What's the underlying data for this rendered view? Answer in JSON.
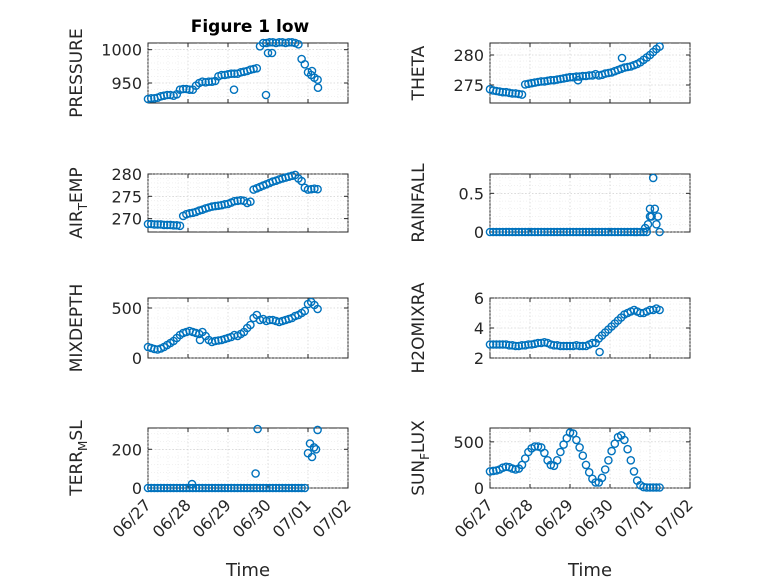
{
  "figure_title": "Figure 1 low",
  "chart_data": [
    {
      "type": "scatter",
      "ylabel": "PRESSURE",
      "ylim": [
        920,
        1010
      ],
      "yticks": [
        950,
        1000
      ],
      "yticklabels": [
        "950",
        "1000"
      ],
      "xlim": [
        0,
        5
      ],
      "xticklabels": [
        "06/27",
        "06/28",
        "06/29",
        "06/30",
        "07/01",
        "07/02"
      ],
      "xlabel": "",
      "color": "#0072bd",
      "grid": true,
      "x": [
        0.0,
        0.08,
        0.16,
        0.24,
        0.32,
        0.4,
        0.48,
        0.56,
        0.64,
        0.72,
        0.8,
        0.88,
        0.96,
        1.04,
        1.12,
        1.2,
        1.28,
        1.36,
        1.44,
        1.52,
        1.6,
        1.68,
        1.76,
        1.84,
        1.92,
        2.0,
        2.08,
        2.16,
        2.24,
        2.32,
        2.4,
        2.48,
        2.56,
        2.64,
        2.72,
        2.8,
        2.88,
        2.96,
        3.04,
        3.12,
        3.2,
        3.28,
        3.36,
        3.44,
        3.52,
        3.6,
        3.68,
        3.76,
        3.84,
        3.92,
        4.0,
        4.08,
        4.16,
        4.24,
        2.15,
        2.95,
        3.0,
        3.1,
        4.1,
        4.25
      ],
      "y": [
        926,
        927,
        927,
        928,
        930,
        931,
        932,
        932,
        931,
        933,
        940,
        941,
        941,
        940,
        940,
        946,
        950,
        952,
        951,
        952,
        952,
        953,
        960,
        962,
        962,
        963,
        964,
        964,
        964,
        966,
        967,
        968,
        970,
        971,
        972,
        1005,
        1010,
        1010,
        1011,
        1011,
        1010,
        1011,
        1011,
        1010,
        1011,
        1011,
        1010,
        1008,
        986,
        978,
        966,
        962,
        958,
        955,
        940,
        932,
        995,
        995,
        968,
        943
      ]
    },
    {
      "type": "scatter",
      "ylabel": "THETA",
      "ylim": [
        272,
        282
      ],
      "yticks": [
        275,
        280
      ],
      "yticklabels": [
        "275",
        "280"
      ],
      "xlim": [
        0,
        5
      ],
      "xticklabels": [
        "06/27",
        "06/28",
        "06/29",
        "06/30",
        "07/01",
        "07/02"
      ],
      "xlabel": "",
      "color": "#0072bd",
      "grid": true,
      "x": [
        0.0,
        0.08,
        0.16,
        0.24,
        0.32,
        0.4,
        0.48,
        0.56,
        0.64,
        0.72,
        0.8,
        0.88,
        0.96,
        1.04,
        1.12,
        1.2,
        1.28,
        1.36,
        1.44,
        1.52,
        1.6,
        1.68,
        1.76,
        1.84,
        1.92,
        2.0,
        2.08,
        2.16,
        2.24,
        2.32,
        2.4,
        2.48,
        2.56,
        2.64,
        2.72,
        2.8,
        2.88,
        2.96,
        3.04,
        3.12,
        3.2,
        3.28,
        3.36,
        3.44,
        3.52,
        3.6,
        3.68,
        3.76,
        3.84,
        3.92,
        4.0,
        4.08,
        4.16,
        4.24,
        3.3,
        2.2
      ],
      "y": [
        274.3,
        274.1,
        274.0,
        273.9,
        273.8,
        273.8,
        273.7,
        273.6,
        273.6,
        273.5,
        273.4,
        275.1,
        275.2,
        275.3,
        275.4,
        275.5,
        275.6,
        275.6,
        275.7,
        275.8,
        275.8,
        275.9,
        276.0,
        276.1,
        276.2,
        276.3,
        276.3,
        276.4,
        276.4,
        276.5,
        276.5,
        276.6,
        276.6,
        276.8,
        276.6,
        276.7,
        276.9,
        277.0,
        277.1,
        277.3,
        277.5,
        277.7,
        277.9,
        278.0,
        278.1,
        278.3,
        278.5,
        278.8,
        279.2,
        279.6,
        280.0,
        280.5,
        281.0,
        281.4,
        279.5,
        275.8
      ]
    },
    {
      "type": "scatter",
      "ylabel": "AIR_TEMP",
      "ylim": [
        267,
        280
      ],
      "yticks": [
        270,
        275,
        280
      ],
      "yticklabels": [
        "270",
        "275",
        "280"
      ],
      "xlim": [
        0,
        5
      ],
      "xticklabels": [
        "06/27",
        "06/28",
        "06/29",
        "06/30",
        "07/01",
        "07/02"
      ],
      "xlabel": "",
      "color": "#0072bd",
      "grid": true,
      "x": [
        0.0,
        0.08,
        0.16,
        0.24,
        0.32,
        0.4,
        0.48,
        0.56,
        0.64,
        0.72,
        0.8,
        0.88,
        0.96,
        1.04,
        1.12,
        1.2,
        1.28,
        1.36,
        1.44,
        1.52,
        1.6,
        1.68,
        1.76,
        1.84,
        1.92,
        2.0,
        2.08,
        2.16,
        2.24,
        2.32,
        2.4,
        2.48,
        2.56,
        2.64,
        2.72,
        2.8,
        2.88,
        2.96,
        3.04,
        3.12,
        3.2,
        3.28,
        3.36,
        3.44,
        3.52,
        3.6,
        3.68,
        3.76,
        3.84,
        3.92,
        4.0,
        4.08,
        4.16,
        4.24
      ],
      "y": [
        268.8,
        268.8,
        268.7,
        268.7,
        268.7,
        268.6,
        268.6,
        268.6,
        268.5,
        268.5,
        268.4,
        270.6,
        271.0,
        271.2,
        271.3,
        271.5,
        271.8,
        272.0,
        272.3,
        272.5,
        272.7,
        272.8,
        272.9,
        273.0,
        273.2,
        273.3,
        273.6,
        273.9,
        274.0,
        274.1,
        274.0,
        273.5,
        273.8,
        276.5,
        276.8,
        277.1,
        277.4,
        277.7,
        278.0,
        278.3,
        278.5,
        278.8,
        279.0,
        279.2,
        279.4,
        279.6,
        279.8,
        279.0,
        278.4,
        276.9,
        276.5,
        276.6,
        276.7,
        276.6
      ]
    },
    {
      "type": "scatter",
      "ylabel": "RAINFALL",
      "ylim": [
        0,
        0.75
      ],
      "yticks": [
        0,
        0.5
      ],
      "yticklabels": [
        "0",
        "0.5"
      ],
      "xlim": [
        0,
        5
      ],
      "xticklabels": [
        "06/27",
        "06/28",
        "06/29",
        "06/30",
        "07/01",
        "07/02"
      ],
      "xlabel": "",
      "color": "#0072bd",
      "grid": true,
      "x": [
        0.0,
        0.08,
        0.16,
        0.24,
        0.32,
        0.4,
        0.48,
        0.56,
        0.64,
        0.72,
        0.8,
        0.88,
        0.96,
        1.04,
        1.12,
        1.2,
        1.28,
        1.36,
        1.44,
        1.52,
        1.6,
        1.68,
        1.76,
        1.84,
        1.92,
        2.0,
        2.08,
        2.16,
        2.24,
        2.32,
        2.4,
        2.48,
        2.56,
        2.64,
        2.72,
        2.8,
        2.88,
        2.96,
        3.04,
        3.12,
        3.2,
        3.28,
        3.36,
        3.44,
        3.52,
        3.6,
        3.68,
        3.76,
        3.84,
        3.92,
        4.0,
        4.04,
        4.08,
        4.12,
        4.16,
        4.2,
        4.24,
        3.88,
        3.95,
        4.0
      ],
      "y": [
        0,
        0,
        0,
        0,
        0,
        0,
        0,
        0,
        0,
        0,
        0,
        0,
        0,
        0,
        0,
        0,
        0,
        0,
        0,
        0,
        0,
        0,
        0,
        0,
        0,
        0,
        0,
        0,
        0,
        0,
        0,
        0,
        0,
        0,
        0,
        0,
        0,
        0,
        0,
        0,
        0,
        0,
        0,
        0,
        0,
        0,
        0,
        0,
        0,
        0,
        0.3,
        0.2,
        0.7,
        0.3,
        0.1,
        0.2,
        0,
        0.05,
        0.1,
        0.2
      ]
    },
    {
      "type": "scatter",
      "ylabel": "MIXDEPTH",
      "ylim": [
        0,
        600
      ],
      "yticks": [
        0,
        500
      ],
      "yticklabels": [
        "0",
        "500"
      ],
      "xlim": [
        0,
        5
      ],
      "xticklabels": [
        "06/27",
        "06/28",
        "06/29",
        "06/30",
        "07/01",
        "07/02"
      ],
      "xlabel": "",
      "color": "#0072bd",
      "grid": true,
      "x": [
        0.0,
        0.08,
        0.16,
        0.24,
        0.32,
        0.4,
        0.48,
        0.56,
        0.64,
        0.72,
        0.8,
        0.88,
        0.96,
        1.04,
        1.12,
        1.2,
        1.28,
        1.36,
        1.44,
        1.52,
        1.6,
        1.68,
        1.76,
        1.84,
        1.92,
        2.0,
        2.08,
        2.16,
        2.24,
        2.32,
        2.4,
        2.48,
        2.56,
        2.64,
        2.72,
        2.8,
        2.88,
        2.96,
        3.04,
        3.12,
        3.2,
        3.28,
        3.36,
        3.44,
        3.52,
        3.6,
        3.68,
        3.76,
        3.84,
        3.92,
        4.0,
        4.08,
        4.16,
        4.24,
        1.3
      ],
      "y": [
        110,
        100,
        90,
        85,
        95,
        110,
        130,
        150,
        170,
        200,
        230,
        250,
        260,
        270,
        260,
        250,
        240,
        260,
        220,
        180,
        160,
        170,
        175,
        180,
        190,
        200,
        210,
        230,
        220,
        240,
        260,
        300,
        330,
        400,
        430,
        380,
        390,
        370,
        380,
        380,
        370,
        360,
        370,
        380,
        390,
        400,
        420,
        430,
        450,
        470,
        540,
        560,
        530,
        490,
        180
      ]
    },
    {
      "type": "scatter",
      "ylabel": "H2OMIXRA",
      "ylim": [
        2,
        6
      ],
      "yticks": [
        2,
        4,
        6
      ],
      "yticklabels": [
        "2",
        "4",
        "6"
      ],
      "xlim": [
        0,
        5
      ],
      "xticklabels": [
        "06/27",
        "06/28",
        "06/29",
        "06/30",
        "07/01",
        "07/02"
      ],
      "xlabel": "",
      "color": "#0072bd",
      "grid": true,
      "x": [
        0.0,
        0.08,
        0.16,
        0.24,
        0.32,
        0.4,
        0.48,
        0.56,
        0.64,
        0.72,
        0.8,
        0.88,
        0.96,
        1.04,
        1.12,
        1.2,
        1.28,
        1.36,
        1.44,
        1.52,
        1.6,
        1.68,
        1.76,
        1.84,
        1.92,
        2.0,
        2.08,
        2.16,
        2.24,
        2.32,
        2.4,
        2.48,
        2.56,
        2.64,
        2.72,
        2.8,
        2.88,
        2.96,
        3.04,
        3.12,
        3.2,
        3.28,
        3.36,
        3.44,
        3.52,
        3.6,
        3.68,
        3.76,
        3.84,
        3.92,
        4.0,
        4.08,
        4.16,
        4.24,
        2.74
      ],
      "y": [
        2.9,
        2.9,
        2.9,
        2.9,
        2.9,
        2.9,
        2.85,
        2.85,
        2.8,
        2.8,
        2.85,
        2.85,
        2.9,
        2.9,
        2.95,
        3.0,
        3.0,
        3.05,
        3.0,
        2.9,
        2.85,
        2.85,
        2.8,
        2.8,
        2.8,
        2.8,
        2.8,
        2.85,
        2.8,
        2.8,
        2.8,
        2.9,
        3.0,
        3.0,
        3.3,
        3.5,
        3.7,
        3.9,
        4.1,
        4.3,
        4.5,
        4.7,
        4.9,
        5.0,
        5.1,
        5.2,
        5.1,
        5.0,
        5.0,
        5.1,
        5.2,
        5.2,
        5.3,
        5.2,
        2.4
      ]
    },
    {
      "type": "scatter",
      "ylabel": "TERR_MSL",
      "ylim": [
        0,
        310
      ],
      "yticks": [
        0,
        200
      ],
      "yticklabels": [
        "0",
        "200"
      ],
      "xlim": [
        0,
        5
      ],
      "xticklabels": [
        "06/27",
        "06/28",
        "06/29",
        "06/30",
        "07/01",
        "07/02"
      ],
      "xlabel": "Time",
      "color": "#0072bd",
      "grid": true,
      "x": [
        0.0,
        0.08,
        0.16,
        0.24,
        0.32,
        0.4,
        0.48,
        0.56,
        0.64,
        0.72,
        0.8,
        0.88,
        0.96,
        1.04,
        1.12,
        1.2,
        1.28,
        1.36,
        1.44,
        1.52,
        1.6,
        1.68,
        1.76,
        1.84,
        1.92,
        2.0,
        2.08,
        2.16,
        2.24,
        2.32,
        2.4,
        2.48,
        2.56,
        2.64,
        2.72,
        2.8,
        2.88,
        2.96,
        3.04,
        3.12,
        3.2,
        3.28,
        3.36,
        3.44,
        3.52,
        3.6,
        3.68,
        3.76,
        3.84,
        3.92,
        4.0,
        4.05,
        4.1,
        4.15,
        4.2,
        4.24,
        1.1,
        2.69,
        2.74
      ],
      "y": [
        0,
        0,
        0,
        0,
        0,
        0,
        0,
        0,
        0,
        0,
        0,
        0,
        0,
        0,
        0,
        0,
        0,
        0,
        0,
        0,
        0,
        0,
        0,
        0,
        0,
        0,
        0,
        0,
        0,
        0,
        0,
        0,
        0,
        0,
        0,
        0,
        0,
        0,
        0,
        0,
        0,
        0,
        0,
        0,
        0,
        0,
        0,
        0,
        0,
        0,
        180,
        230,
        160,
        210,
        200,
        300,
        20,
        75,
        305
      ]
    },
    {
      "type": "scatter",
      "ylabel": "SUN_FLUX",
      "ylim": [
        0,
        650
      ],
      "yticks": [
        0,
        500
      ],
      "yticklabels": [
        "0",
        "500"
      ],
      "xlim": [
        0,
        5
      ],
      "xticklabels": [
        "06/27",
        "06/28",
        "06/29",
        "06/30",
        "07/01",
        "07/02"
      ],
      "xlabel": "Time",
      "color": "#0072bd",
      "grid": true,
      "x": [
        0.0,
        0.08,
        0.16,
        0.24,
        0.32,
        0.4,
        0.48,
        0.56,
        0.64,
        0.72,
        0.8,
        0.88,
        0.96,
        1.04,
        1.12,
        1.2,
        1.28,
        1.36,
        1.44,
        1.52,
        1.6,
        1.68,
        1.76,
        1.84,
        1.92,
        2.0,
        2.08,
        2.16,
        2.24,
        2.32,
        2.4,
        2.48,
        2.56,
        2.64,
        2.72,
        2.8,
        2.88,
        2.96,
        3.04,
        3.12,
        3.2,
        3.28,
        3.36,
        3.44,
        3.52,
        3.6,
        3.68,
        3.76,
        3.84,
        3.92,
        4.0,
        4.08,
        4.16,
        4.24
      ],
      "y": [
        180,
        185,
        190,
        200,
        220,
        230,
        225,
        210,
        200,
        210,
        250,
        320,
        390,
        430,
        450,
        450,
        440,
        380,
        300,
        250,
        240,
        300,
        390,
        470,
        540,
        600,
        590,
        520,
        440,
        350,
        250,
        170,
        100,
        60,
        60,
        110,
        200,
        300,
        400,
        480,
        550,
        570,
        520,
        420,
        300,
        180,
        80,
        30,
        10,
        5,
        5,
        5,
        5,
        5
      ]
    }
  ]
}
